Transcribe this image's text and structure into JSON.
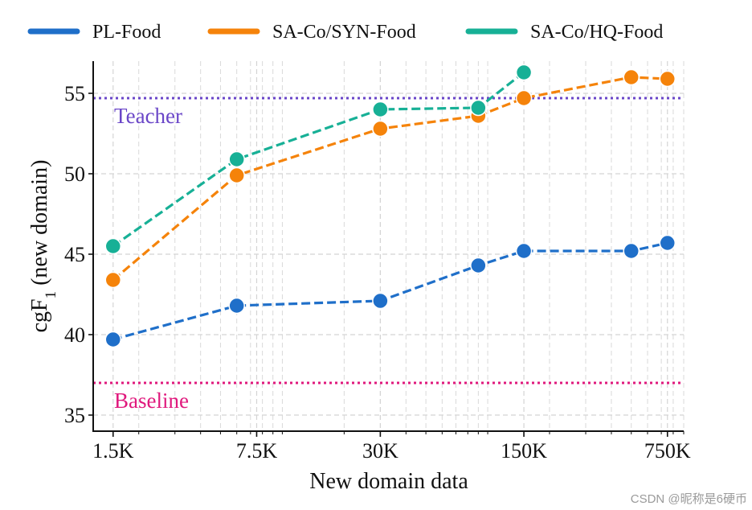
{
  "chart_data": {
    "type": "line",
    "title": "",
    "xlabel": "New domain data",
    "ylabel": "cgF",
    "ylabel_subscript": "1",
    "ylabel_suffix": " (new domain)",
    "x_scale": "log",
    "xlim": [
      1200,
      900000
    ],
    "ylim": [
      34,
      57
    ],
    "yticks": [
      35,
      40,
      45,
      50,
      55
    ],
    "xticks": [
      {
        "value": 1500,
        "label": "1.5K"
      },
      {
        "value": 7500,
        "label": "7.5K"
      },
      {
        "value": 30000,
        "label": "30K"
      },
      {
        "value": 150000,
        "label": "150K"
      },
      {
        "value": 750000,
        "label": "750K"
      }
    ],
    "grid": true,
    "legend_position": "top",
    "series": [
      {
        "name": "PL-Food",
        "color": "#1f6fc9",
        "points": [
          {
            "x": 1500,
            "y": 39.7
          },
          {
            "x": 6000,
            "y": 41.8
          },
          {
            "x": 30000,
            "y": 42.1
          },
          {
            "x": 90000,
            "y": 44.3
          },
          {
            "x": 150000,
            "y": 45.2
          },
          {
            "x": 500000,
            "y": 45.2
          },
          {
            "x": 750000,
            "y": 45.7
          }
        ]
      },
      {
        "name": "SA-Co/SYN-Food",
        "color": "#f5830a",
        "points": [
          {
            "x": 1500,
            "y": 43.4
          },
          {
            "x": 6000,
            "y": 49.9
          },
          {
            "x": 30000,
            "y": 52.8
          },
          {
            "x": 90000,
            "y": 53.6
          },
          {
            "x": 150000,
            "y": 54.7
          },
          {
            "x": 500000,
            "y": 56.0
          },
          {
            "x": 750000,
            "y": 55.9
          }
        ]
      },
      {
        "name": "SA-Co/HQ-Food",
        "color": "#17b096",
        "points": [
          {
            "x": 1500,
            "y": 45.5
          },
          {
            "x": 6000,
            "y": 50.9
          },
          {
            "x": 30000,
            "y": 54.0
          },
          {
            "x": 90000,
            "y": 54.1
          },
          {
            "x": 150000,
            "y": 56.3
          }
        ]
      }
    ],
    "reference_lines": [
      {
        "name": "Teacher",
        "value": 54.7,
        "color": "#6a46c8"
      },
      {
        "name": "Baseline",
        "value": 37.0,
        "color": "#e0197d"
      }
    ]
  },
  "watermark": "CSDN @昵称是6硬币"
}
